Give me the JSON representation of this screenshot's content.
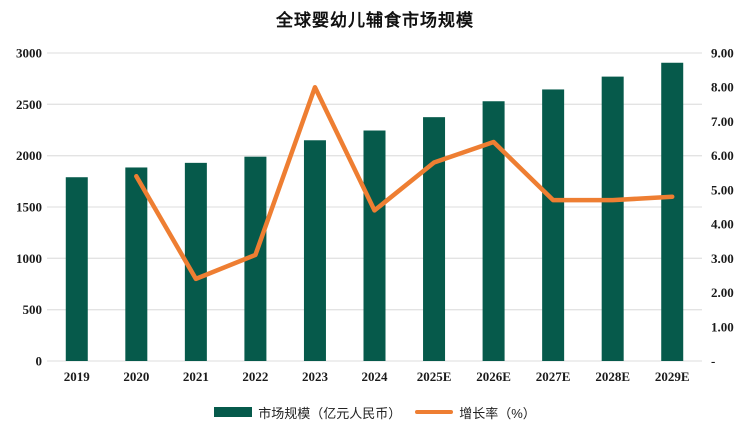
{
  "title": "全球婴幼儿辅食市场规模",
  "chart_data": {
    "type": "bar+line combo",
    "title": "全球婴幼儿辅食市场规模",
    "categories": [
      "2019",
      "2020",
      "2021",
      "2022",
      "2023",
      "2024",
      "2025E",
      "2026E",
      "2027E",
      "2028E",
      "2029E"
    ],
    "series": [
      {
        "name": "市场规模（亿元人民币）",
        "type": "bar",
        "axis": "left",
        "color": "#065a4b",
        "values": [
          1790,
          1885,
          1930,
          1990,
          2150,
          2245,
          2375,
          2530,
          2645,
          2770,
          2905
        ]
      },
      {
        "name": "增长率（%）",
        "type": "line",
        "axis": "right",
        "color": "#ee7e32",
        "values": [
          null,
          5.4,
          2.4,
          3.1,
          8.0,
          4.4,
          5.8,
          6.4,
          4.7,
          4.7,
          4.8
        ]
      }
    ],
    "left_axis": {
      "min": 0,
      "max": 3000,
      "step": 500,
      "labels": [
        "0",
        "500",
        "1000",
        "1500",
        "2000",
        "2500",
        "3000"
      ]
    },
    "right_axis": {
      "min": 0,
      "max": 9,
      "step": 1,
      "labels": [
        "-",
        "1.00",
        "2.00",
        "3.00",
        "4.00",
        "5.00",
        "6.00",
        "7.00",
        "8.00",
        "9.00"
      ]
    },
    "grid": true,
    "gridline_color": "#e3e3e3",
    "text_color": "#1a1a1a",
    "legend_position": "bottom"
  },
  "legend": {
    "items": [
      {
        "label": "市场规模（亿元人民币）",
        "swatch": "bar",
        "color": "#065a4b"
      },
      {
        "label": "增长率（%）",
        "swatch": "line",
        "color": "#ee7e32"
      }
    ]
  }
}
